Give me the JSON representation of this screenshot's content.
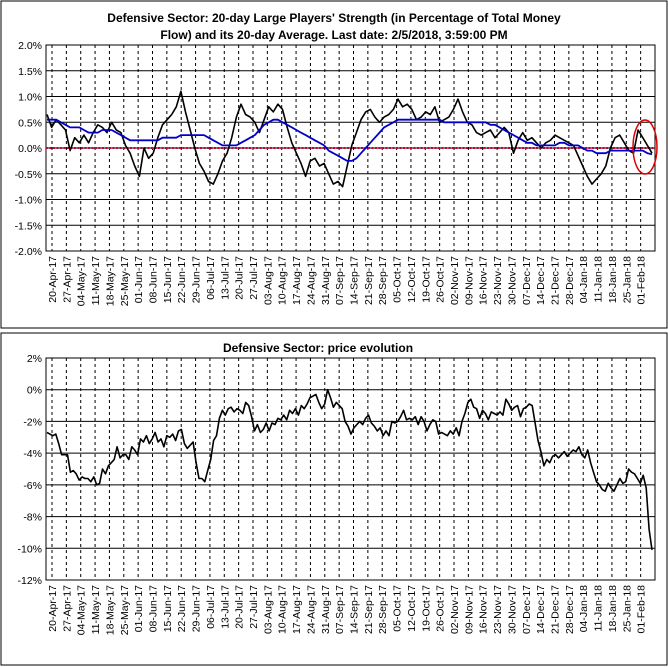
{
  "chart_data": [
    {
      "type": "line",
      "title_line1": "Defensive Sector: 20-day Large Players' Strength (in Percentage of Total Money",
      "title_line2": "Flow) and its 20-day Average. Last date: 2/5/2018, 3:59:00 PM",
      "ylim": [
        -2.0,
        2.0
      ],
      "y_ticks": [
        "2.0%",
        "1.5%",
        "1.0%",
        "0.5%",
        "0.0%",
        "-0.5%",
        "-1.0%",
        "-1.5%",
        "-2.0%"
      ],
      "x_tick_labels": [
        "20-Apr-17",
        "27-Apr-17",
        "04-May-17",
        "11-May-17",
        "18-May-17",
        "25-May-17",
        "01-Jun-17",
        "08-Jun-17",
        "15-Jun-17",
        "22-Jun-17",
        "29-Jun-17",
        "06-Jul-17",
        "13-Jul-17",
        "20-Jul-17",
        "27-Jul-17",
        "03-Aug-17",
        "10-Aug-17",
        "17-Aug-17",
        "24-Aug-17",
        "31-Aug-17",
        "07-Sep-17",
        "14-Sep-17",
        "21-Sep-17",
        "28-Sep-17",
        "05-Oct-17",
        "12-Oct-17",
        "19-Oct-17",
        "26-Oct-17",
        "02-Nov-17",
        "09-Nov-17",
        "16-Nov-17",
        "23-Nov-17",
        "30-Nov-17",
        "07-Dec-17",
        "14-Dec-17",
        "21-Dec-17",
        "28-Dec-17",
        "04-Jan-18",
        "11-Jan-18",
        "18-Jan-18",
        "25-Jan-18",
        "01-Feb-18"
      ],
      "grid": true,
      "annotation": "red ellipse highlighting the latest readings (top-right)",
      "colors": {
        "strength": "#000000",
        "average": "#0000cc",
        "zero_line": "#cc0033",
        "highlight": "#dd0000"
      },
      "series": [
        {
          "key": "strength",
          "values": [
            0.65,
            0.4,
            0.55,
            0.45,
            0.35,
            -0.05,
            0.2,
            0.1,
            0.25,
            0.1,
            0.3,
            0.45,
            0.4,
            0.3,
            0.5,
            0.35,
            0.3,
            0.05,
            -0.1,
            -0.35,
            -0.55,
            0.0,
            -0.2,
            -0.1,
            0.2,
            0.45,
            0.55,
            0.65,
            0.8,
            1.1,
            0.7,
            0.35,
            0.0,
            -0.3,
            -0.45,
            -0.65,
            -0.7,
            -0.5,
            -0.25,
            -0.1,
            0.2,
            0.6,
            0.85,
            0.65,
            0.6,
            0.5,
            0.3,
            0.55,
            0.8,
            0.7,
            0.85,
            0.75,
            0.4,
            0.1,
            -0.1,
            -0.3,
            -0.55,
            -0.25,
            -0.2,
            -0.35,
            -0.3,
            -0.5,
            -0.7,
            -0.65,
            -0.75,
            -0.35,
            0.05,
            0.3,
            0.55,
            0.7,
            0.75,
            0.6,
            0.5,
            0.6,
            0.65,
            0.75,
            0.95,
            0.8,
            0.85,
            0.75,
            0.55,
            0.6,
            0.7,
            0.65,
            0.8,
            0.5,
            0.55,
            0.6,
            0.75,
            0.95,
            0.7,
            0.5,
            0.45,
            0.3,
            0.25,
            0.3,
            0.35,
            0.2,
            0.3,
            0.4,
            0.3,
            -0.1,
            0.15,
            0.3,
            0.15,
            0.2,
            0.1,
            0.0,
            0.1,
            0.15,
            0.25,
            0.2,
            0.15,
            0.1,
            0.05,
            -0.15,
            -0.35,
            -0.55,
            -0.7,
            -0.6,
            -0.5,
            -0.35,
            0.0,
            0.2,
            0.25,
            0.1,
            -0.05,
            -0.1,
            0.35,
            0.2,
            0.05,
            -0.1
          ]
        },
        {
          "key": "average",
          "values": [
            0.55,
            0.55,
            0.55,
            0.5,
            0.45,
            0.4,
            0.4,
            0.4,
            0.35,
            0.3,
            0.3,
            0.3,
            0.35,
            0.35,
            0.35,
            0.3,
            0.25,
            0.2,
            0.15,
            0.15,
            0.15,
            0.15,
            0.15,
            0.15,
            0.15,
            0.2,
            0.2,
            0.2,
            0.2,
            0.25,
            0.25,
            0.25,
            0.25,
            0.25,
            0.25,
            0.2,
            0.15,
            0.1,
            0.05,
            0.05,
            0.05,
            0.05,
            0.1,
            0.15,
            0.2,
            0.25,
            0.35,
            0.45,
            0.5,
            0.55,
            0.55,
            0.5,
            0.45,
            0.4,
            0.35,
            0.3,
            0.25,
            0.2,
            0.15,
            0.1,
            0.05,
            -0.05,
            -0.1,
            -0.15,
            -0.2,
            -0.25,
            -0.25,
            -0.2,
            -0.1,
            0.0,
            0.1,
            0.2,
            0.3,
            0.4,
            0.45,
            0.5,
            0.55,
            0.55,
            0.55,
            0.55,
            0.55,
            0.55,
            0.55,
            0.55,
            0.55,
            0.55,
            0.5,
            0.5,
            0.5,
            0.5,
            0.5,
            0.5,
            0.5,
            0.5,
            0.5,
            0.5,
            0.45,
            0.45,
            0.4,
            0.35,
            0.3,
            0.25,
            0.2,
            0.15,
            0.1,
            0.1,
            0.05,
            0.05,
            0.05,
            0.05,
            0.05,
            0.1,
            0.1,
            0.05,
            0.05,
            0.05,
            0.0,
            -0.05,
            -0.05,
            -0.1,
            -0.1,
            -0.1,
            -0.05,
            -0.05,
            -0.05,
            -0.05,
            -0.05,
            -0.05,
            -0.05,
            -0.05,
            -0.1,
            -0.12
          ]
        }
      ]
    },
    {
      "type": "line",
      "title": "Defensive Sector: price evolution",
      "ylim": [
        -12,
        2
      ],
      "y_ticks": [
        "2%",
        "0%",
        "-2%",
        "-4%",
        "-6%",
        "-8%",
        "-10%",
        "-12%"
      ],
      "x_tick_labels": [
        "20-Apr-17",
        "27-Apr-17",
        "04-May-17",
        "11-May-17",
        "18-May-17",
        "25-May-17",
        "01-Jun-17",
        "08-Jun-17",
        "15-Jun-17",
        "22-Jun-17",
        "29-Jun-17",
        "06-Jul-17",
        "13-Jul-17",
        "20-Jul-17",
        "27-Jul-17",
        "03-Aug-17",
        "10-Aug-17",
        "17-Aug-17",
        "24-Aug-17",
        "31-Aug-17",
        "07-Sep-17",
        "14-Sep-17",
        "21-Sep-17",
        "28-Sep-17",
        "05-Oct-17",
        "12-Oct-17",
        "19-Oct-17",
        "26-Oct-17",
        "02-Nov-17",
        "09-Nov-17",
        "16-Nov-17",
        "23-Nov-17",
        "30-Nov-17",
        "07-Dec-17",
        "14-Dec-17",
        "21-Dec-17",
        "28-Dec-17",
        "04-Jan-18",
        "11-Jan-18",
        "18-Jan-18",
        "25-Jan-18",
        "01-Feb-18"
      ],
      "grid": true,
      "colors": {
        "price": "#000000"
      },
      "series": [
        {
          "key": "price",
          "values": [
            -2.7,
            -2.8,
            -2.9,
            -2.8,
            -3.4,
            -4.1,
            -4.1,
            -4.1,
            -5.2,
            -5.1,
            -5.3,
            -5.7,
            -5.5,
            -5.6,
            -5.6,
            -5.8,
            -5.5,
            -6.0,
            -5.9,
            -5.0,
            -5.3,
            -4.8,
            -4.6,
            -4.4,
            -3.6,
            -4.3,
            -4.1,
            -4.1,
            -4.4,
            -3.6,
            -3.8,
            -4.1,
            -3.1,
            -3.3,
            -2.9,
            -3.4,
            -3.1,
            -2.7,
            -3.3,
            -3.1,
            -3.6,
            -2.9,
            -3.0,
            -2.8,
            -3.2,
            -2.6,
            -2.5,
            -3.4,
            -3.7,
            -3.5,
            -3.3,
            -4.6,
            -5.6,
            -5.6,
            -5.8,
            -5.1,
            -4.4,
            -3.2,
            -2.9,
            -1.8,
            -1.3,
            -1.6,
            -1.2,
            -1.1,
            -1.4,
            -1.2,
            -1.3,
            -1.5,
            -0.8,
            -1.0,
            -1.7,
            -2.6,
            -2.2,
            -2.7,
            -2.5,
            -2.1,
            -2.6,
            -2.1,
            -2.2,
            -1.8,
            -1.9,
            -1.6,
            -1.9,
            -1.3,
            -1.5,
            -1.2,
            -1.6,
            -1.0,
            -1.2,
            -0.9,
            -0.5,
            -0.4,
            -0.3,
            -0.8,
            -1.2,
            -0.9,
            0.0,
            -0.5,
            -1.1,
            -0.8,
            -1.0,
            -1.2,
            -2.0,
            -2.3,
            -2.8,
            -2.4,
            -2.2,
            -2.0,
            -2.2,
            -1.8,
            -1.6,
            -2.1,
            -2.3,
            -2.6,
            -2.4,
            -2.9,
            -2.6,
            -2.9,
            -2.0,
            -2.1,
            -2.0,
            -1.7,
            -1.3,
            -1.9,
            -1.8,
            -1.9,
            -1.7,
            -2.2,
            -1.7,
            -2.0,
            -2.6,
            -2.2,
            -1.9,
            -2.0,
            -2.8,
            -2.7,
            -2.8,
            -2.9,
            -2.6,
            -2.8,
            -2.4,
            -2.9,
            -2.0,
            -1.5,
            -0.8,
            -0.6,
            -1.1,
            -1.2,
            -1.8,
            -1.3,
            -1.5,
            -1.9,
            -1.4,
            -1.5,
            -1.6,
            -1.4,
            -1.6,
            -0.6,
            -0.9,
            -1.3,
            -1.1,
            -1.0,
            -1.7,
            -1.2,
            -1.1,
            -0.9,
            -1.0,
            -2.1,
            -3.2,
            -3.9,
            -4.8,
            -4.4,
            -4.6,
            -4.2,
            -4.1,
            -4.3,
            -4.1,
            -3.9,
            -4.2,
            -4.0,
            -3.8,
            -3.9,
            -3.6,
            -4.1,
            -4.3,
            -3.8,
            -4.6,
            -5.2,
            -5.8,
            -6.0,
            -6.3,
            -6.4,
            -5.9,
            -6.2,
            -6.4,
            -6.0,
            -5.6,
            -5.9,
            -5.8,
            -5.0,
            -5.2,
            -5.3,
            -5.6,
            -5.9,
            -5.4,
            -6.2,
            -8.8,
            -10.1
          ]
        }
      ]
    }
  ]
}
